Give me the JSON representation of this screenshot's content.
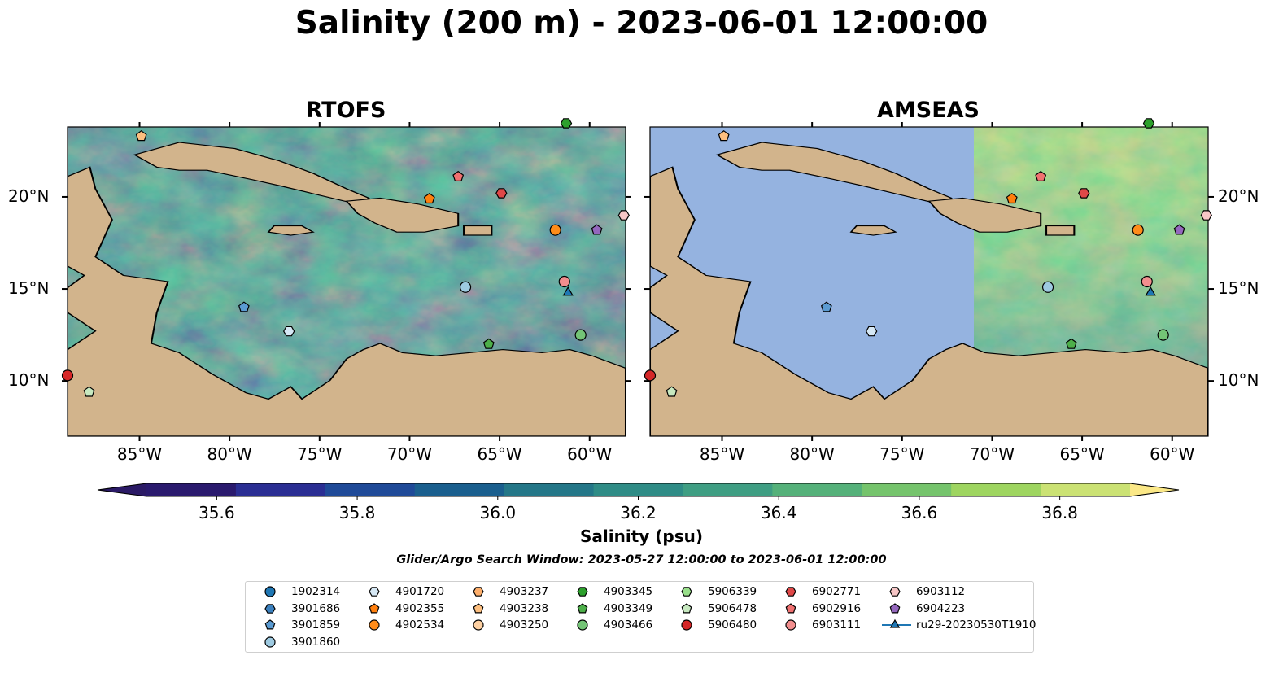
{
  "title": "Salinity (200 m) - 2023-06-01 12:00:00",
  "colors": {
    "land": "#d2b48c",
    "ocean": "#95b3e0",
    "marker_edge": "#000000"
  },
  "panels": [
    {
      "title": "RTOFS",
      "coverage": "full"
    },
    {
      "title": "AMSEAS",
      "coverage": "east of 71W"
    }
  ],
  "map_extent": {
    "lon_min": -89.0,
    "lon_max": -58.0,
    "lat_min": 7.0,
    "lat_max": 23.8
  },
  "lon_ticks": [
    {
      "lon": -85,
      "label": "85°W"
    },
    {
      "lon": -80,
      "label": "80°W"
    },
    {
      "lon": -75,
      "label": "75°W"
    },
    {
      "lon": -70,
      "label": "70°W"
    },
    {
      "lon": -65,
      "label": "65°W"
    },
    {
      "lon": -60,
      "label": "60°W"
    }
  ],
  "lat_ticks": [
    {
      "lat": 20,
      "label": "20°N"
    },
    {
      "lat": 15,
      "label": "15°N"
    },
    {
      "lat": 10,
      "label": "10°N"
    }
  ],
  "colorbar": {
    "label": "Salinity (psu)",
    "min": 35.5,
    "max": 36.9,
    "step": 0.1,
    "colors": [
      "#2a1a6e",
      "#2a2e93",
      "#1f4a98",
      "#1a5f8e",
      "#247788",
      "#2f8c86",
      "#3f9e83",
      "#55b17a",
      "#75c46c",
      "#9ed560",
      "#cbe274"
    ],
    "extend_low_color": "#2b1a66",
    "extend_high_color": "#fbe887",
    "ticks": [
      {
        "value": 35.6,
        "label": "35.6"
      },
      {
        "value": 35.8,
        "label": "35.8"
      },
      {
        "value": 36.0,
        "label": "36.0"
      },
      {
        "value": 36.2,
        "label": "36.2"
      },
      {
        "value": 36.4,
        "label": "36.4"
      },
      {
        "value": 36.6,
        "label": "36.6"
      },
      {
        "value": 36.8,
        "label": "36.8"
      }
    ]
  },
  "search_window": "Glider/Argo Search Window: 2023-05-27 12:00:00 to 2023-06-01 12:00:00",
  "platforms": [
    {
      "id": "1902314",
      "marker": "circle",
      "color": "#1f77b4",
      "lon": null,
      "lat": null
    },
    {
      "id": "3901686",
      "marker": "hexagon",
      "color": "#3b80be",
      "lon": null,
      "lat": null
    },
    {
      "id": "3901859",
      "marker": "pentagon",
      "color": "#5b9bd2",
      "lon": -79.2,
      "lat": 14.0
    },
    {
      "id": "3901860",
      "marker": "circle",
      "color": "#9ecae1",
      "lon": -66.9,
      "lat": 15.1
    },
    {
      "id": "4901720",
      "marker": "hexagon",
      "color": "#d6e8f5",
      "lon": -76.7,
      "lat": 12.7
    },
    {
      "id": "4902355",
      "marker": "pentagon",
      "color": "#ff7f0e",
      "lon": -68.9,
      "lat": 19.9
    },
    {
      "id": "4902534",
      "marker": "circle",
      "color": "#ff8c1a",
      "lon": -61.9,
      "lat": 18.2
    },
    {
      "id": "4903237",
      "marker": "hexagon",
      "color": "#fdae6b",
      "lon": null,
      "lat": null
    },
    {
      "id": "4903238",
      "marker": "pentagon",
      "color": "#fdbf7f",
      "lon": -84.9,
      "lat": 23.3
    },
    {
      "id": "4903250",
      "marker": "circle",
      "color": "#fdd0a2",
      "lon": null,
      "lat": null
    },
    {
      "id": "4903345",
      "marker": "hexagon",
      "color": "#2ca02c",
      "lon": -61.3,
      "lat": 24.0
    },
    {
      "id": "4903349",
      "marker": "pentagon",
      "color": "#4daf4a",
      "lon": -65.6,
      "lat": 12.0
    },
    {
      "id": "4903466",
      "marker": "circle",
      "color": "#74c476",
      "lon": -60.5,
      "lat": 12.5
    },
    {
      "id": "5906339",
      "marker": "hexagon",
      "color": "#98df8a",
      "lon": null,
      "lat": null
    },
    {
      "id": "5906478",
      "marker": "pentagon",
      "color": "#c7e9c0",
      "lon": -87.8,
      "lat": 9.4
    },
    {
      "id": "5906480",
      "marker": "circle",
      "color": "#d62728",
      "lon": -89.0,
      "lat": 10.3
    },
    {
      "id": "6902771",
      "marker": "hexagon",
      "color": "#e04848",
      "lon": -64.9,
      "lat": 20.2
    },
    {
      "id": "6902916",
      "marker": "pentagon",
      "color": "#f07070",
      "lon": -67.3,
      "lat": 21.1
    },
    {
      "id": "6903111",
      "marker": "circle",
      "color": "#f28e8e",
      "lon": -61.4,
      "lat": 15.4
    },
    {
      "id": "6903112",
      "marker": "hexagon",
      "color": "#f7c6c6",
      "lon": -58.1,
      "lat": 19.0
    },
    {
      "id": "6904223",
      "marker": "pentagon",
      "color": "#9467bd",
      "lon": -59.6,
      "lat": 18.2
    },
    {
      "id": "ru29-20230530T1910",
      "marker": "triangle",
      "color": "#1f77b4",
      "lon": -61.2,
      "lat": 14.8
    }
  ]
}
